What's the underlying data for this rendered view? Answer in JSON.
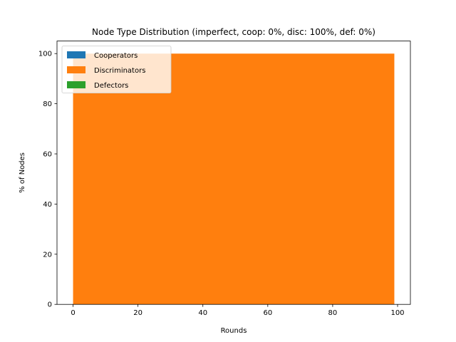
{
  "chart_data": {
    "type": "area",
    "title": "Node Type Distribution (imperfect, coop: 0%, disc: 100%, def: 0%)",
    "xlabel": "Rounds",
    "ylabel": "% of Nodes",
    "x": [
      0,
      99
    ],
    "xlim": [
      -4.95,
      103.95
    ],
    "ylim": [
      0,
      105
    ],
    "xticks": [
      0,
      20,
      40,
      60,
      80,
      100
    ],
    "yticks": [
      0,
      20,
      40,
      60,
      80,
      100
    ],
    "stacked": true,
    "grid": false,
    "legend_position": "upper-left",
    "series": [
      {
        "name": "Cooperators",
        "color": "#1f77b4",
        "values": [
          0,
          0
        ]
      },
      {
        "name": "Discriminators",
        "color": "#ff7f0e",
        "values": [
          100,
          100
        ]
      },
      {
        "name": "Defectors",
        "color": "#2ca02c",
        "values": [
          0,
          0
        ]
      }
    ]
  }
}
